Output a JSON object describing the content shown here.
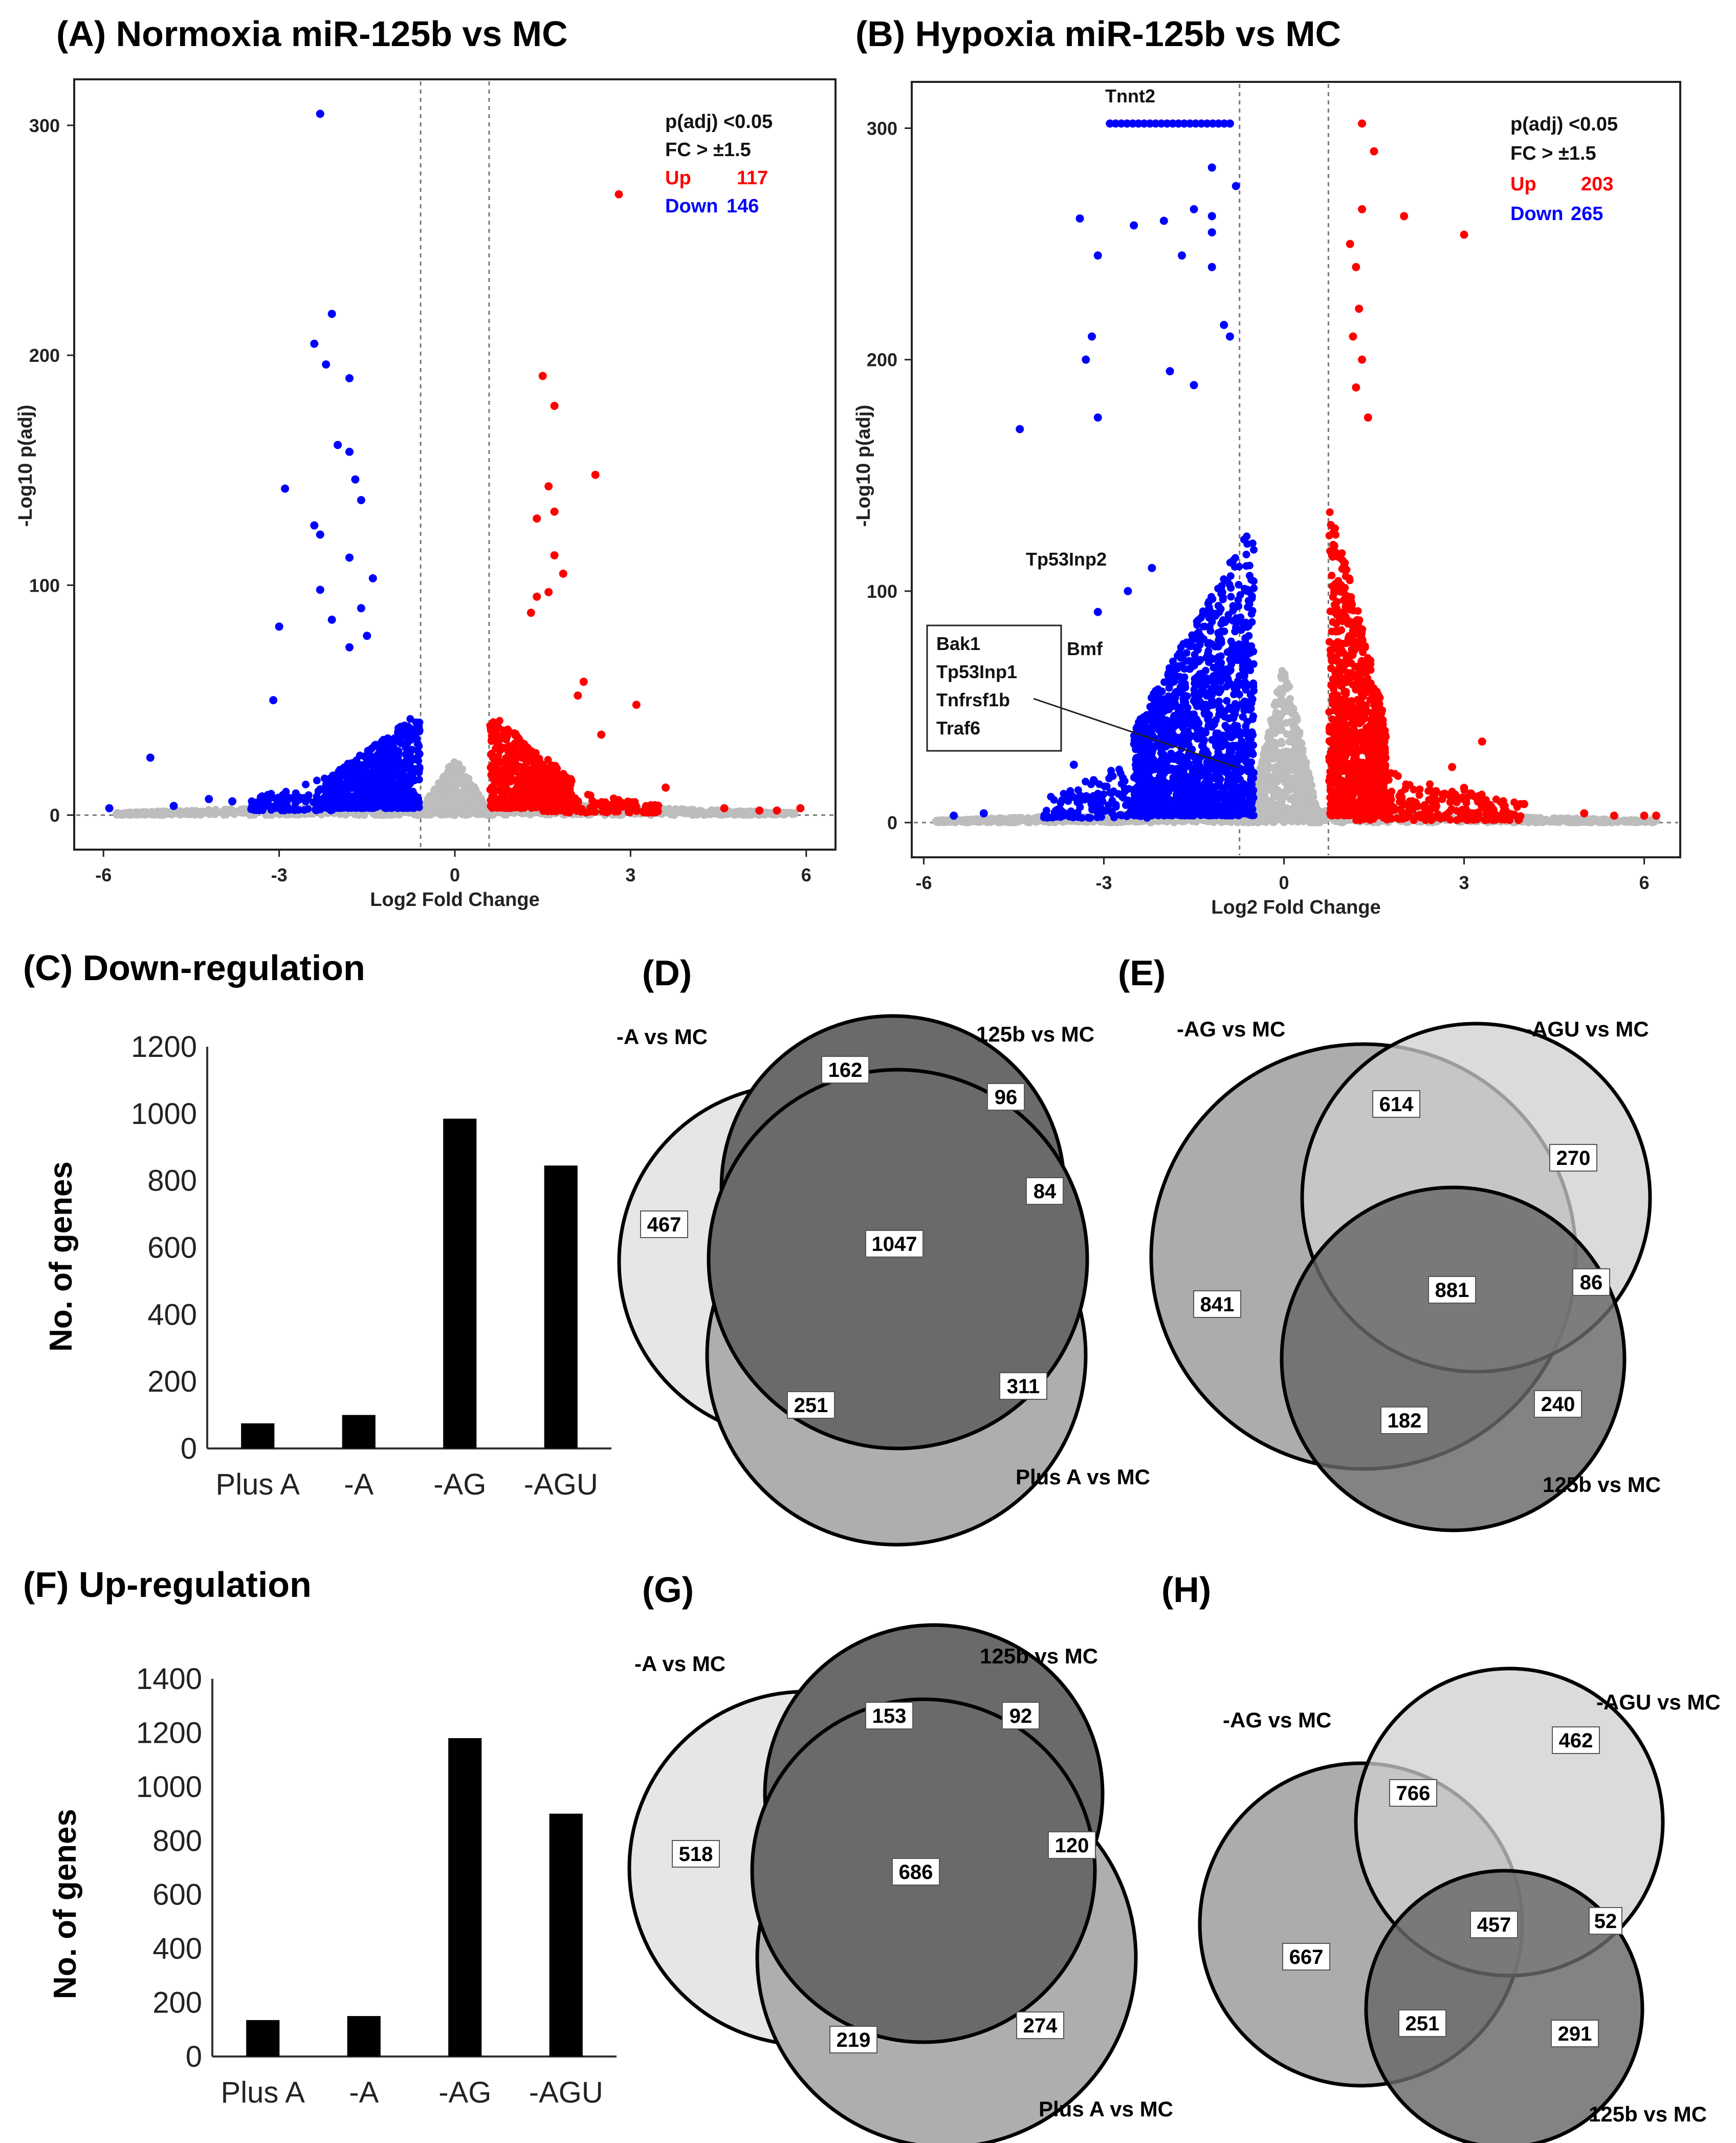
{
  "chart_data": [
    {
      "id": "A",
      "type": "scatter",
      "title": "(A) Normoxia miR-125b vs MC",
      "xlabel": "Log2 Fold Change",
      "ylabel": "-Log10 p(adj)",
      "xlim": [
        -6.5,
        6.5
      ],
      "ylim": [
        -15,
        320
      ],
      "xticks": [
        -6,
        -3,
        0,
        3,
        6
      ],
      "yticks": [
        0,
        100,
        200,
        300
      ],
      "thresholds": {
        "fc_log2": 0.585,
        "p_line": 0
      },
      "legend": {
        "line1": "p(adj) <0.05",
        "line2": "FC > ±1.5",
        "up_label": "Up",
        "up_value": "117",
        "down_label": "Down",
        "down_value": "146"
      },
      "colors": {
        "up": "#ff0000",
        "down": "#0000ff",
        "ns": "#bdbdbd"
      },
      "up_points": [
        [
          1.5,
          191
        ],
        [
          1.7,
          178
        ],
        [
          2.4,
          148
        ],
        [
          2.8,
          270
        ],
        [
          1.6,
          143
        ],
        [
          1.7,
          132
        ],
        [
          1.4,
          129
        ],
        [
          1.7,
          113
        ],
        [
          1.85,
          105
        ],
        [
          1.6,
          97
        ],
        [
          1.4,
          95
        ],
        [
          1.3,
          88
        ],
        [
          2.2,
          58
        ],
        [
          2.1,
          52
        ],
        [
          3.1,
          48
        ],
        [
          2.5,
          35
        ],
        [
          3.6,
          12
        ],
        [
          4.6,
          3
        ],
        [
          5.2,
          2
        ],
        [
          5.9,
          3
        ],
        [
          5.5,
          2
        ]
      ],
      "down_points": [
        [
          -2.3,
          305
        ],
        [
          -2.1,
          218
        ],
        [
          -2.4,
          205
        ],
        [
          -1.8,
          190
        ],
        [
          -2.2,
          196
        ],
        [
          -2.0,
          161
        ],
        [
          -1.8,
          158
        ],
        [
          -1.7,
          146
        ],
        [
          -1.6,
          137
        ],
        [
          -2.9,
          142
        ],
        [
          -2.4,
          126
        ],
        [
          -2.3,
          122
        ],
        [
          -1.8,
          112
        ],
        [
          -1.4,
          103
        ],
        [
          -2.3,
          98
        ],
        [
          -1.6,
          90
        ],
        [
          -2.1,
          85
        ],
        [
          -3.0,
          82
        ],
        [
          -1.5,
          78
        ],
        [
          -1.8,
          73
        ],
        [
          -5.2,
          25
        ],
        [
          -3.1,
          50
        ],
        [
          -4.2,
          7
        ],
        [
          -4.8,
          4
        ],
        [
          -5.9,
          3
        ],
        [
          -3.8,
          6
        ]
      ],
      "clusters": [
        {
          "kind": "ns",
          "x_range": [
            -5.8,
            5.8
          ],
          "y_range": [
            0,
            6
          ],
          "n": 900
        },
        {
          "kind": "ns",
          "x_range": [
            -0.65,
            0.65
          ],
          "y_range": [
            0,
            25
          ],
          "n": 350
        },
        {
          "kind": "down",
          "x_range": [
            -2.2,
            -0.6
          ],
          "y_range": [
            3,
            45
          ],
          "n": 700
        },
        {
          "kind": "down",
          "x_range": [
            -3.5,
            -2.0
          ],
          "y_range": [
            2,
            18
          ],
          "n": 120
        },
        {
          "kind": "up",
          "x_range": [
            0.6,
            2.0
          ],
          "y_range": [
            3,
            45
          ],
          "n": 600
        },
        {
          "kind": "up",
          "x_range": [
            1.5,
            3.5
          ],
          "y_range": [
            1,
            12
          ],
          "n": 120
        }
      ]
    },
    {
      "id": "B",
      "type": "scatter",
      "title": "(B) Hypoxia miR-125b vs MC",
      "xlabel": "Log2 Fold Change",
      "ylabel": "-Log10 p(adj)",
      "xlim": [
        -6.2,
        6.6
      ],
      "ylim": [
        -15,
        320
      ],
      "xticks": [
        -6,
        -3,
        0,
        3,
        6
      ],
      "yticks": [
        0,
        100,
        200,
        300
      ],
      "thresholds": {
        "fc_log2": 0.74,
        "fc_log2_neg": -0.74,
        "p_line": 0
      },
      "legend": {
        "line1": "p(adj) <0.05",
        "line2": "FC > ±1.5",
        "up_label": "Up",
        "up_value": "203",
        "down_label": "Down",
        "down_value": "265"
      },
      "colors": {
        "up": "#ff0000",
        "down": "#0000ff",
        "ns": "#bdbdbd"
      },
      "gene_labels": [
        "Tnnt2",
        "Tp53Inp2",
        "Bmf",
        "Bak1",
        "Tp53Inp1",
        "Tnfrsf1b",
        "Traf6"
      ],
      "up_points": [
        [
          1.3,
          302
        ],
        [
          1.5,
          290
        ],
        [
          2.0,
          262
        ],
        [
          3.0,
          254
        ],
        [
          1.3,
          265
        ],
        [
          1.1,
          250
        ],
        [
          1.2,
          240
        ],
        [
          1.25,
          222
        ],
        [
          1.15,
          210
        ],
        [
          1.3,
          200
        ],
        [
          1.2,
          188
        ],
        [
          1.4,
          175
        ],
        [
          3.3,
          35
        ],
        [
          2.8,
          24
        ],
        [
          3.0,
          15
        ],
        [
          4.0,
          8
        ],
        [
          5.0,
          4
        ],
        [
          5.5,
          3
        ],
        [
          6.0,
          3
        ],
        [
          6.2,
          3
        ]
      ],
      "down_points": [
        [
          -3.2,
          210
        ],
        [
          -3.4,
          261
        ],
        [
          -3.3,
          200
        ],
        [
          -4.4,
          170
        ],
        [
          -3.1,
          175
        ],
        [
          -3.1,
          245
        ],
        [
          -2.5,
          258
        ],
        [
          -2.0,
          260
        ],
        [
          -1.5,
          265
        ],
        [
          -1.2,
          262
        ],
        [
          -1.2,
          255
        ],
        [
          -1.7,
          245
        ],
        [
          -0.8,
          275
        ],
        [
          -1.2,
          283
        ],
        [
          -1.2,
          240
        ],
        [
          -1.0,
          215
        ],
        [
          -0.9,
          210
        ],
        [
          -1.9,
          195
        ],
        [
          -1.5,
          189
        ],
        [
          -3.1,
          91
        ],
        [
          -2.6,
          100
        ],
        [
          -2.2,
          110
        ],
        [
          -4.3,
          33
        ],
        [
          -3.5,
          25
        ],
        [
          -5.0,
          4
        ],
        [
          -5.5,
          3
        ]
      ],
      "tnnt2_row": {
        "x_range": [
          -2.9,
          -0.9
        ],
        "y": 302,
        "n": 22
      },
      "clusters": [
        {
          "kind": "ns",
          "x_range": [
            -5.8,
            6.2
          ],
          "y_range": [
            0,
            6
          ],
          "n": 1000
        },
        {
          "kind": "ns",
          "x_range": [
            -0.6,
            0.6
          ],
          "y_range": [
            0,
            70
          ],
          "n": 600
        },
        {
          "kind": "down",
          "x_range": [
            -2.5,
            -0.5
          ],
          "y_range": [
            3,
            130
          ],
          "n": 1500
        },
        {
          "kind": "down",
          "x_range": [
            -4.0,
            -2.2
          ],
          "y_range": [
            2,
            30
          ],
          "n": 160
        },
        {
          "kind": "up",
          "x_range": [
            0.75,
            1.7
          ],
          "y_range": [
            3,
            140
          ],
          "n": 1000
        },
        {
          "kind": "up",
          "x_range": [
            1.2,
            4.0
          ],
          "y_range": [
            1,
            25
          ],
          "n": 250
        }
      ]
    },
    {
      "id": "C",
      "type": "bar",
      "title": "(C) Down-regulation",
      "categories": [
        "Plus A",
        "-A",
        "-AG",
        "-AGU"
      ],
      "values": [
        75,
        100,
        985,
        845
      ],
      "ylabel": "No. of genes",
      "ylim": [
        0,
        1200
      ],
      "yticks": [
        0,
        200,
        400,
        600,
        800,
        1000,
        1200
      ]
    },
    {
      "id": "F",
      "type": "bar",
      "title": "(F) Up-regulation",
      "categories": [
        "Plus A",
        "-A",
        "-AG",
        "-AGU"
      ],
      "values": [
        135,
        150,
        1180,
        900
      ],
      "ylabel": "No. of genes",
      "ylim": [
        0,
        1400
      ],
      "yticks": [
        0,
        200,
        400,
        600,
        800,
        1000,
        1200,
        1400
      ]
    },
    {
      "id": "D",
      "type": "venn",
      "title": "(D)",
      "sets": [
        "-A vs MC",
        "125b vs MC",
        "Plus A vs MC"
      ],
      "counts": [
        "467",
        "162",
        "96",
        "84",
        "1047",
        "251",
        "311"
      ]
    },
    {
      "id": "E",
      "type": "venn",
      "title": "(E)",
      "sets": [
        "-AG vs MC",
        "-AGU vs MC",
        "125b vs MC"
      ],
      "counts": [
        "614",
        "270",
        "841",
        "881",
        "86",
        "182",
        "240"
      ]
    },
    {
      "id": "G",
      "type": "venn",
      "title": "(G)",
      "sets": [
        "-A vs MC",
        "125b vs MC",
        "Plus A vs MC"
      ],
      "counts": [
        "153",
        "92",
        "518",
        "686",
        "120",
        "219",
        "274"
      ]
    },
    {
      "id": "H",
      "type": "venn",
      "title": "(H)",
      "sets": [
        "-AG vs MC",
        "-AGU vs MC",
        "125b vs MC"
      ],
      "counts": [
        "462",
        "766",
        "667",
        "457",
        "52",
        "251",
        "291"
      ]
    }
  ]
}
